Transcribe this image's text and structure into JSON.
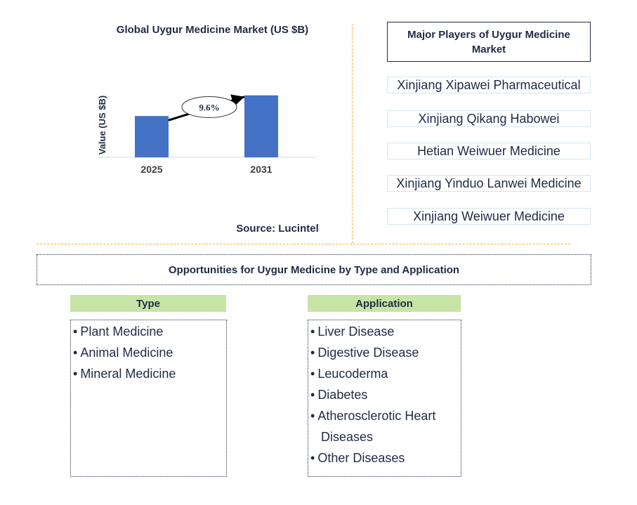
{
  "chart_data": {
    "type": "bar",
    "title": "Global Uygur Medicine Market (US $B)",
    "ylabel": "Value (US $B)",
    "categories": [
      "2025",
      "2031"
    ],
    "values": [
      1.0,
      1.5
    ],
    "ylim": [
      0,
      1.7
    ],
    "annotation": "9.6%",
    "bar_color": "#4472c4",
    "grid": false
  },
  "source": "Source: Lucintel",
  "players": {
    "title": "Major Players of Uygur Medicine Market",
    "items": [
      "Xinjiang Xipawei Pharmaceutical",
      "Xinjiang Qikang Habowei",
      "Hetian Weiwuer Medicine",
      "Xinjiang Yinduo Lanwei Medicine",
      "Xinjiang Weiwuer Medicine"
    ]
  },
  "opportunities": {
    "title": "Opportunities for Uygur Medicine by Type and Application",
    "type_header": "Type",
    "type_items": [
      "Plant Medicine",
      "Animal Medicine",
      "Mineral Medicine"
    ],
    "application_header": "Application",
    "application_items": [
      "Liver Disease",
      "Digestive Disease",
      "Leucoderma",
      "Diabetes",
      "Atherosclerotic Heart",
      "Diseases",
      "Other Diseases"
    ]
  },
  "colors": {
    "divider": "#f2b233",
    "header_fill": "#c6e4a5",
    "text": "#1f2a44"
  }
}
